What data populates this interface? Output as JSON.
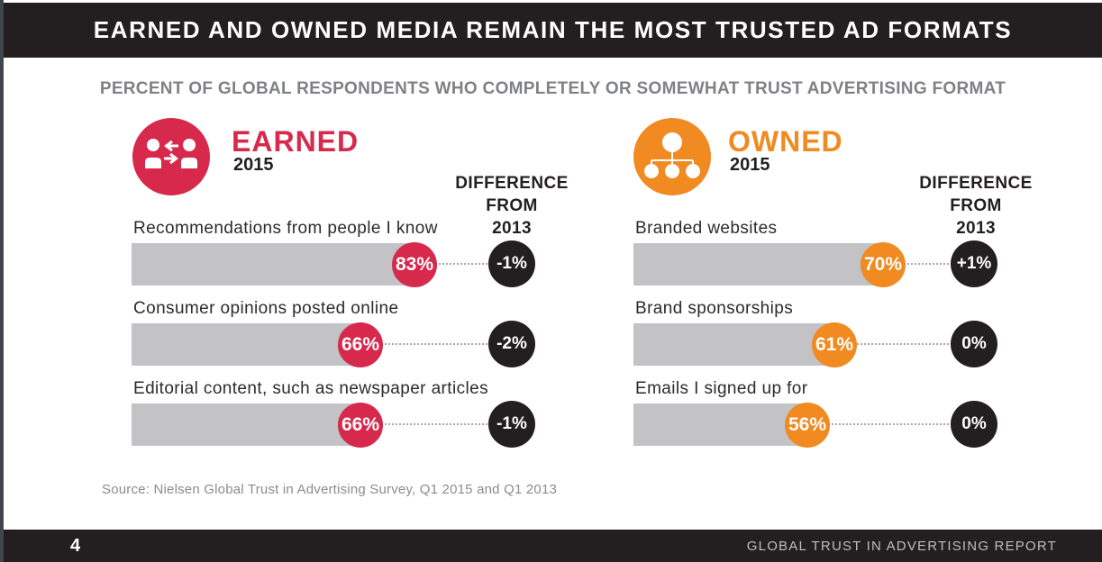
{
  "page": {
    "header_title": "EARNED AND OWNED MEDIA REMAIN THE MOST TRUSTED AD FORMATS",
    "subtitle": "PERCENT OF GLOBAL RESPONDENTS WHO COMPLETELY OR SOMEWHAT TRUST ADVERTISING FORMAT",
    "source": "Source: Nielsen Global Trust in Advertising Survey, Q1 2015 and Q1 2013",
    "footer": {
      "page_number": "4",
      "report_title": "GLOBAL TRUST IN ADVERTISING REPORT"
    }
  },
  "colors": {
    "earned_accent": "#D6294C",
    "owned_accent": "#F08A21",
    "bar_gray": "#C3C2C4",
    "ink_black": "#231F20",
    "subtitle_gray": "#808184",
    "source_gray": "#8A8C8E",
    "footer_text_gray": "#BCBEC0"
  },
  "chart_data": [
    {
      "type": "bar",
      "group_label": "EARNED",
      "group_year": "2015",
      "group_icon": "people-exchange-icon",
      "accent_color": "#D6294C",
      "diff_header_lines": [
        "DIFFERENCE",
        "FROM",
        "2013"
      ],
      "categories": [
        "Recommendations from people I know",
        "Consumer opinions posted online",
        "Editorial content, such as newspaper articles"
      ],
      "values": [
        83,
        66,
        66
      ],
      "value_labels": [
        "83%",
        "66%",
        "66%"
      ],
      "diff_from_2013": [
        "-1%",
        "-2%",
        "-1%"
      ]
    },
    {
      "type": "bar",
      "group_label": "OWNED",
      "group_year": "2015",
      "group_icon": "org-chart-icon",
      "accent_color": "#F08A21",
      "diff_header_lines": [
        "DIFFERENCE",
        "FROM",
        "2013"
      ],
      "categories": [
        "Branded websites",
        "Brand sponsorships",
        "Emails I signed up for"
      ],
      "values": [
        70,
        61,
        56
      ],
      "value_labels": [
        "70%",
        "61%",
        "56%"
      ],
      "diff_from_2013": [
        "+1%",
        "0%",
        "0%"
      ]
    }
  ]
}
